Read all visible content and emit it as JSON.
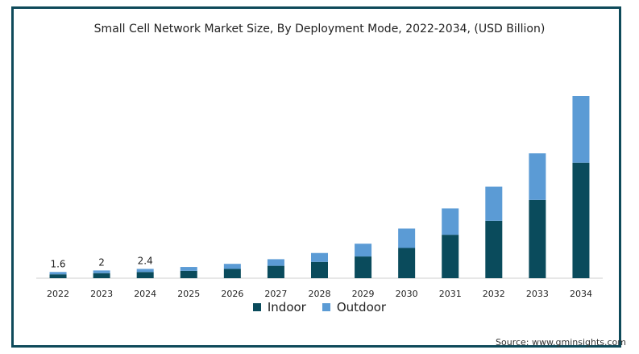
{
  "chart_data": {
    "type": "bar",
    "stacked": true,
    "title": "Small Cell Network Market Size, By Deployment Mode, 2022-2034, (USD Billion)",
    "xlabel": "",
    "ylabel": "",
    "categories": [
      "2022",
      "2023",
      "2024",
      "2025",
      "2026",
      "2027",
      "2028",
      "2029",
      "2030",
      "2031",
      "2032",
      "2033",
      "2034"
    ],
    "series": [
      {
        "name": "Indoor",
        "color": "#0a4b5c",
        "values": [
          1.0,
          1.3,
          1.6,
          1.9,
          2.4,
          3.2,
          4.2,
          5.6,
          7.8,
          11.2,
          14.8,
          20.2,
          29.8
        ]
      },
      {
        "name": "Outdoor",
        "color": "#5b9bd5",
        "values": [
          0.6,
          0.7,
          0.8,
          1.0,
          1.3,
          1.7,
          2.3,
          3.3,
          5.0,
          6.8,
          8.8,
          12.0,
          17.2
        ]
      }
    ],
    "data_labels": [
      "1.6",
      "2",
      "2.4",
      "",
      "",
      "",
      "",
      "",
      "",
      "",
      "",
      "",
      ""
    ],
    "ylim": [
      0,
      50
    ],
    "grid": false,
    "legend_position": "bottom"
  },
  "source_text": "Source: www.gminsights.com"
}
